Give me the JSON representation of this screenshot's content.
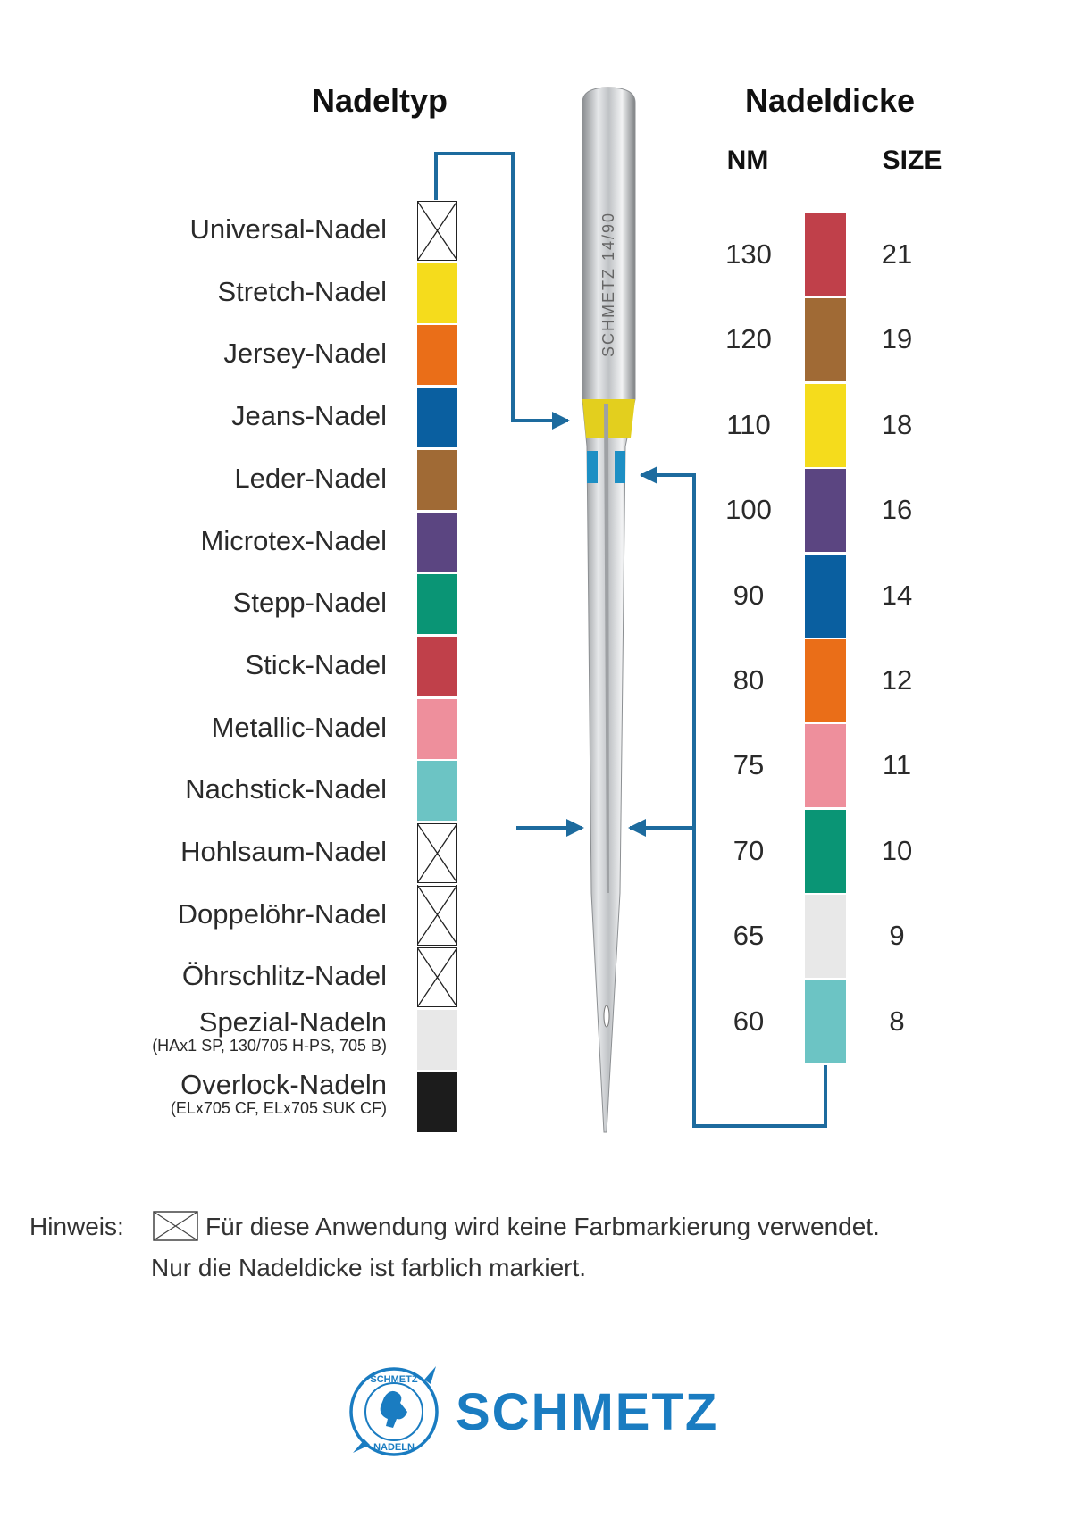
{
  "left": {
    "title": "Nadeltyp",
    "items": [
      {
        "label": "Universal-Nadel",
        "color": null
      },
      {
        "label": "Stretch-Nadel",
        "color": "#f5dc1c"
      },
      {
        "label": "Jersey-Nadel",
        "color": "#ea6e18"
      },
      {
        "label": "Jeans-Nadel",
        "color": "#0a5fa0"
      },
      {
        "label": "Leder-Nadel",
        "color": "#a06a35"
      },
      {
        "label": "Microtex-Nadel",
        "color": "#5b4581"
      },
      {
        "label": "Stepp-Nadel",
        "color": "#0a9575"
      },
      {
        "label": "Stick-Nadel",
        "color": "#c0404a"
      },
      {
        "label": "Metallic-Nadel",
        "color": "#ee8f9c"
      },
      {
        "label": "Nachstick-Nadel",
        "color": "#6cc4c4"
      },
      {
        "label": "Hohlsaum-Nadel",
        "color": null
      },
      {
        "label": "Doppelöhr-Nadel",
        "color": null
      },
      {
        "label": "Öhrschlitz-Nadel",
        "color": null
      },
      {
        "label": "Spezial-Nadeln",
        "sub": "(HAx1 SP, 130/705 H-PS, 705 B)",
        "color": "#e8e8e8"
      },
      {
        "label": "Overlock-Nadeln",
        "sub": "(ELx705 CF, ELx705 SUK CF)",
        "color": "#1c1c1c"
      }
    ]
  },
  "right": {
    "title": "Nadeldicke",
    "nm_header": "NM",
    "size_header": "SIZE",
    "items": [
      {
        "nm": "130",
        "size": "21",
        "color": "#c0404a"
      },
      {
        "nm": "120",
        "size": "19",
        "color": "#a06a35"
      },
      {
        "nm": "110",
        "size": "18",
        "color": "#f5dc1c"
      },
      {
        "nm": "100",
        "size": "16",
        "color": "#5b4581"
      },
      {
        "nm": "90",
        "size": "14",
        "color": "#0a5fa0"
      },
      {
        "nm": "80",
        "size": "12",
        "color": "#ea6e18"
      },
      {
        "nm": "75",
        "size": "11",
        "color": "#ee8f9c"
      },
      {
        "nm": "70",
        "size": "10",
        "color": "#0a9575"
      },
      {
        "nm": "65",
        "size": "9",
        "color": "#e8e8e8"
      },
      {
        "nm": "60",
        "size": "8",
        "color": "#6cc4c4"
      }
    ]
  },
  "needle": {
    "engraving": "SCHMETZ 14/90",
    "type_band_color": "#e3cf1e",
    "size_band_color": "#1d8fc4"
  },
  "note": {
    "label": "Hinweis:",
    "line1": "Für diese Anwendung wird keine Farbmarkierung verwendet.",
    "line2": "Nur die Nadeldicke ist farblich markiert."
  },
  "logo": {
    "wordmark": "SCHMETZ",
    "seal_top": "SCHMETZ",
    "seal_bottom": "NADELN"
  },
  "colors": {
    "connector": "#1d6b9e",
    "brand": "#1a7cc1"
  }
}
